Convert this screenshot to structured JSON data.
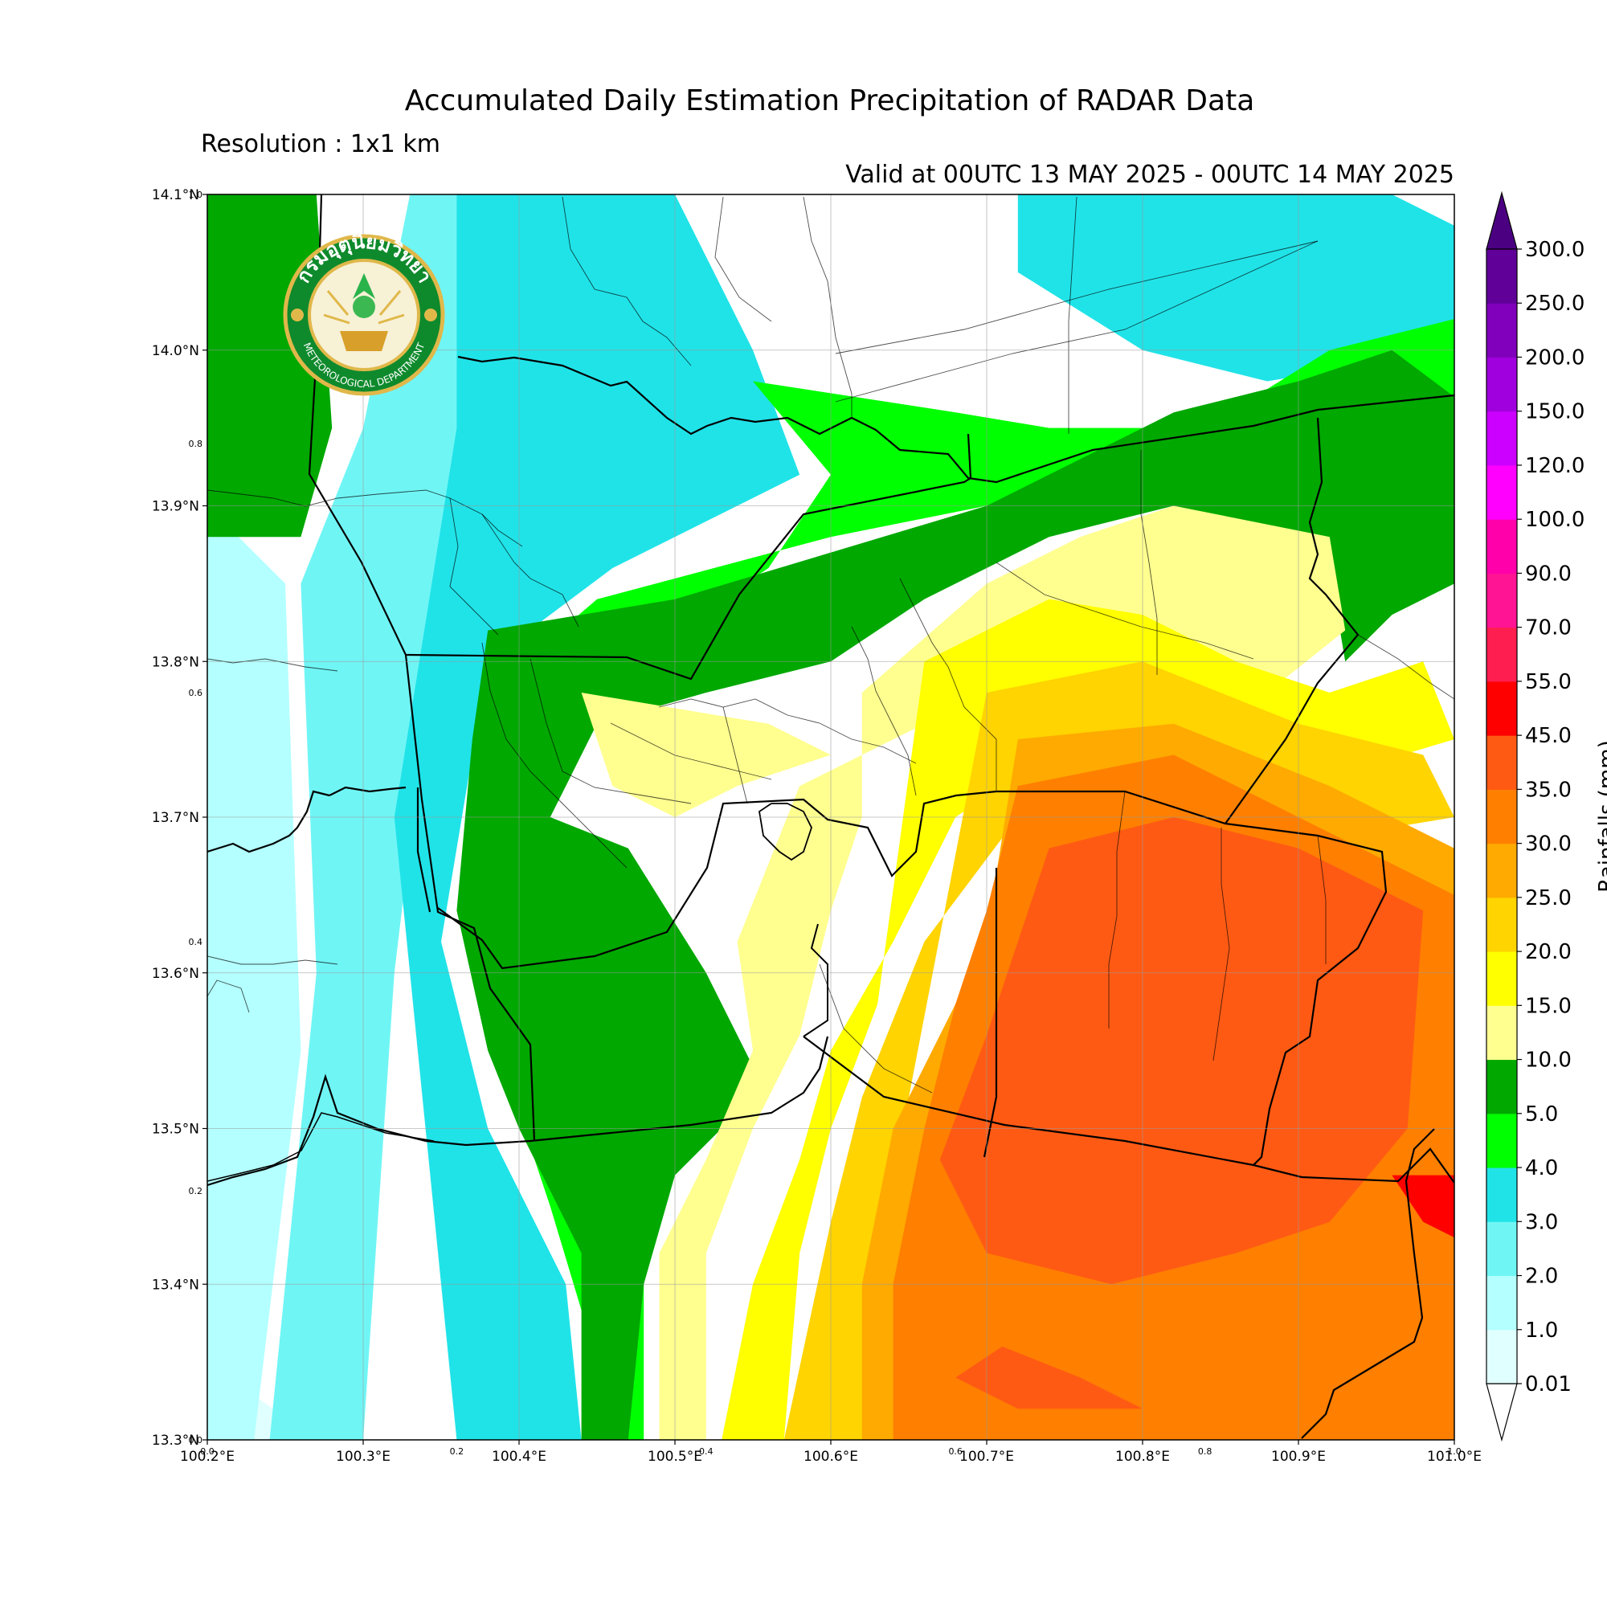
{
  "header": {
    "title": "Accumulated Daily Estimation Precipitation of RADAR Data",
    "resolution": "Resolution : 1x1 km",
    "valid": "Valid at 00UTC 13 MAY 2025 - 00UTC 14 MAY 2025"
  },
  "logo": {
    "thai_text": "กรมอุตุนิยมวิทยา",
    "english_text": "METEOROLOGICAL DEPARTMENT",
    "icon": "meteorological-department-seal-icon"
  },
  "map": {
    "lon_range": [
      100.2,
      101.0
    ],
    "lat_range": [
      13.3,
      14.1
    ],
    "lon_ticks": [
      {
        "value": 100.2,
        "label": "100.2°E"
      },
      {
        "value": 100.3,
        "label": "100.3°E"
      },
      {
        "value": 100.4,
        "label": "100.4°E"
      },
      {
        "value": 100.5,
        "label": "100.5°E"
      },
      {
        "value": 100.6,
        "label": "100.6°E"
      },
      {
        "value": 100.7,
        "label": "100.7°E"
      },
      {
        "value": 100.8,
        "label": "100.8°E"
      },
      {
        "value": 100.9,
        "label": "100.9°E"
      },
      {
        "value": 101.0,
        "label": "101.0°E"
      }
    ],
    "lat_ticks": [
      {
        "value": 14.1,
        "label": "14.1°N"
      },
      {
        "value": 14.0,
        "label": "14.0°N"
      },
      {
        "value": 13.9,
        "label": "13.9°N"
      },
      {
        "value": 13.8,
        "label": "13.8°N"
      },
      {
        "value": 13.7,
        "label": "13.7°N"
      },
      {
        "value": 13.6,
        "label": "13.6°N"
      },
      {
        "value": 13.5,
        "label": "13.5°N"
      },
      {
        "value": 13.4,
        "label": "13.4°N"
      },
      {
        "value": 13.3,
        "label": "13.3°N"
      }
    ],
    "frac_ticks_bottom": [
      "0.0",
      "0.2",
      "0.4",
      "0.6",
      "0.8",
      "1.0"
    ],
    "frac_ticks_left": [
      "1.0",
      "0.8",
      "0.6",
      "0.4",
      "0.2",
      "0.0"
    ],
    "gridlines": true
  },
  "colorbar": {
    "title": "Rainfalls (mm)",
    "levels": [
      "0.01",
      "1.0",
      "2.0",
      "3.0",
      "4.0",
      "5.0",
      "10.0",
      "15.0",
      "20.0",
      "25.0",
      "30.0",
      "35.0",
      "45.0",
      "55.0",
      "70.0",
      "90.0",
      "100.0",
      "120.0",
      "150.0",
      "200.0",
      "250.0",
      "300.0"
    ],
    "colors": [
      "#e0ffff",
      "#b4ffff",
      "#70f5f5",
      "#20e3e8",
      "#00ff00",
      "#00a800",
      "#ffff90",
      "#ffff00",
      "#ffd400",
      "#ffaa00",
      "#ff7f00",
      "#ff5a14",
      "#ff0000",
      "#ff1e50",
      "#ff1493",
      "#ff00aa",
      "#ff00ff",
      "#cc00ff",
      "#a000dd",
      "#8000bb",
      "#600099"
    ],
    "extend_low_color": "#ffffff",
    "extend_high_color": "#4b0082"
  },
  "chart_data": {
    "type": "heatmap",
    "title": "Accumulated Daily Estimation Precipitation of RADAR Data",
    "xlabel": "",
    "ylabel": "",
    "xlim": [
      100.2,
      101.0
    ],
    "ylim": [
      13.3,
      14.1
    ],
    "colorbar_label": "Rainfalls (mm)",
    "contour_levels": [
      0.01,
      1.0,
      2.0,
      3.0,
      4.0,
      5.0,
      10.0,
      15.0,
      20.0,
      25.0,
      30.0,
      35.0,
      45.0,
      55.0,
      70.0,
      90.0,
      100.0,
      120.0,
      150.0,
      200.0,
      250.0,
      300.0
    ],
    "precip_regions": [
      {
        "level": "0.01-1.0",
        "polygon_lonlat": [
          [
            100.2,
            13.35
          ],
          [
            100.27,
            13.3
          ],
          [
            100.2,
            13.3
          ]
        ]
      },
      {
        "level": "1.0-2.0",
        "polygon_lonlat": [
          [
            100.2,
            13.9
          ],
          [
            100.25,
            13.85
          ],
          [
            100.26,
            13.55
          ],
          [
            100.23,
            13.3
          ],
          [
            100.2,
            13.3
          ]
        ]
      },
      {
        "level": "2.0-3.0",
        "polygon_lonlat": [
          [
            100.33,
            14.1
          ],
          [
            100.46,
            14.1
          ],
          [
            100.42,
            13.95
          ],
          [
            100.35,
            13.85
          ],
          [
            100.32,
            13.6
          ],
          [
            100.3,
            13.3
          ],
          [
            100.24,
            13.3
          ],
          [
            100.27,
            13.6
          ],
          [
            100.26,
            13.85
          ],
          [
            100.3,
            13.95
          ]
        ]
      },
      {
        "level": "3.0-4.0",
        "polygon_lonlat": [
          [
            100.36,
            14.1
          ],
          [
            100.5,
            14.1
          ],
          [
            100.55,
            14.0
          ],
          [
            100.58,
            13.92
          ],
          [
            100.46,
            13.86
          ],
          [
            100.38,
            13.8
          ],
          [
            100.35,
            13.62
          ],
          [
            100.38,
            13.5
          ],
          [
            100.43,
            13.4
          ],
          [
            100.44,
            13.3
          ],
          [
            100.36,
            13.3
          ],
          [
            100.34,
            13.5
          ],
          [
            100.32,
            13.7
          ],
          [
            100.36,
            13.95
          ]
        ]
      },
      {
        "level": "3.0-4.0",
        "polygon_lonlat": [
          [
            100.72,
            14.1
          ],
          [
            100.96,
            14.1
          ],
          [
            101.0,
            14.08
          ],
          [
            101.0,
            14.0
          ],
          [
            100.88,
            13.98
          ],
          [
            100.8,
            14.0
          ],
          [
            100.72,
            14.05
          ]
        ]
      },
      {
        "level": "4.0-5.0",
        "polygon_lonlat": [
          [
            100.55,
            13.98
          ],
          [
            100.68,
            13.96
          ],
          [
            100.74,
            13.95
          ],
          [
            100.84,
            13.95
          ],
          [
            100.92,
            14.0
          ],
          [
            101.0,
            14.02
          ],
          [
            101.0,
            13.95
          ],
          [
            100.9,
            13.95
          ],
          [
            100.82,
            13.93
          ],
          [
            100.7,
            13.9
          ],
          [
            100.6,
            13.88
          ],
          [
            100.45,
            13.84
          ],
          [
            100.38,
            13.78
          ],
          [
            100.37,
            13.6
          ],
          [
            100.42,
            13.45
          ],
          [
            100.45,
            13.35
          ],
          [
            100.45,
            13.3
          ],
          [
            100.48,
            13.3
          ],
          [
            100.48,
            13.42
          ],
          [
            100.44,
            13.55
          ],
          [
            100.41,
            13.72
          ],
          [
            100.47,
            13.8
          ],
          [
            100.56,
            13.86
          ],
          [
            100.6,
            13.92
          ]
        ]
      },
      {
        "level": "5.0-10.0",
        "polygon_lonlat": [
          [
            100.2,
            14.1
          ],
          [
            100.27,
            14.1
          ],
          [
            100.28,
            13.95
          ],
          [
            100.26,
            13.88
          ],
          [
            100.2,
            13.88
          ]
        ]
      },
      {
        "level": "5.0-10.0",
        "polygon_lonlat": [
          [
            100.38,
            13.82
          ],
          [
            100.5,
            13.84
          ],
          [
            100.6,
            13.87
          ],
          [
            100.7,
            13.9
          ],
          [
            100.76,
            13.93
          ],
          [
            100.82,
            13.96
          ],
          [
            100.9,
            13.98
          ],
          [
            100.96,
            14.0
          ],
          [
            101.0,
            13.97
          ],
          [
            101.0,
            13.85
          ],
          [
            100.96,
            13.83
          ],
          [
            100.93,
            13.8
          ],
          [
            100.92,
            13.86
          ],
          [
            100.82,
            13.9
          ],
          [
            100.74,
            13.88
          ],
          [
            100.66,
            13.84
          ],
          [
            100.6,
            13.8
          ],
          [
            100.52,
            13.78
          ],
          [
            100.45,
            13.76
          ],
          [
            100.42,
            13.7
          ],
          [
            100.47,
            13.68
          ],
          [
            100.52,
            13.6
          ],
          [
            100.55,
            13.54
          ],
          [
            100.53,
            13.5
          ],
          [
            100.5,
            13.47
          ],
          [
            100.48,
            13.4
          ],
          [
            100.47,
            13.3
          ],
          [
            100.44,
            13.3
          ],
          [
            100.44,
            13.42
          ],
          [
            100.4,
            13.5
          ],
          [
            100.38,
            13.55
          ],
          [
            100.36,
            13.64
          ],
          [
            100.37,
            13.75
          ]
        ]
      },
      {
        "level": "10.0-15.0",
        "polygon_lonlat": [
          [
            100.62,
            13.78
          ],
          [
            100.7,
            13.85
          ],
          [
            100.76,
            13.88
          ],
          [
            100.82,
            13.9
          ],
          [
            100.92,
            13.88
          ],
          [
            100.93,
            13.82
          ],
          [
            100.88,
            13.78
          ],
          [
            100.82,
            13.8
          ],
          [
            100.78,
            13.82
          ],
          [
            100.72,
            13.8
          ],
          [
            100.66,
            13.76
          ],
          [
            100.58,
            13.72
          ],
          [
            100.54,
            13.62
          ],
          [
            100.55,
            13.55
          ],
          [
            100.52,
            13.48
          ],
          [
            100.49,
            13.42
          ],
          [
            100.49,
            13.3
          ],
          [
            100.52,
            13.3
          ],
          [
            100.52,
            13.42
          ],
          [
            100.55,
            13.5
          ],
          [
            100.58,
            13.56
          ],
          [
            100.6,
            13.64
          ],
          [
            100.62,
            13.7
          ]
        ]
      },
      {
        "level": "10.0-15.0",
        "polygon_lonlat": [
          [
            100.44,
            13.78
          ],
          [
            100.5,
            13.77
          ],
          [
            100.56,
            13.76
          ],
          [
            100.6,
            13.74
          ],
          [
            100.54,
            13.72
          ],
          [
            100.5,
            13.7
          ],
          [
            100.46,
            13.72
          ]
        ]
      },
      {
        "level": "15.0-20.0",
        "polygon_lonlat": [
          [
            100.66,
            13.8
          ],
          [
            100.74,
            13.84
          ],
          [
            100.8,
            13.83
          ],
          [
            100.86,
            13.8
          ],
          [
            100.92,
            13.78
          ],
          [
            100.98,
            13.8
          ],
          [
            101.0,
            13.75
          ],
          [
            100.9,
            13.72
          ],
          [
            100.82,
            13.72
          ],
          [
            100.74,
            13.74
          ],
          [
            100.68,
            13.7
          ],
          [
            100.64,
            13.62
          ],
          [
            100.6,
            13.55
          ],
          [
            100.58,
            13.48
          ],
          [
            100.55,
            13.4
          ],
          [
            100.53,
            13.3
          ],
          [
            100.57,
            13.3
          ],
          [
            100.58,
            13.42
          ],
          [
            100.6,
            13.5
          ],
          [
            100.63,
            13.58
          ]
        ]
      },
      {
        "level": "20.0-25.0",
        "polygon_lonlat": [
          [
            100.7,
            13.78
          ],
          [
            100.8,
            13.8
          ],
          [
            100.9,
            13.76
          ],
          [
            100.98,
            13.74
          ],
          [
            101.0,
            13.7
          ],
          [
            100.88,
            13.68
          ],
          [
            100.8,
            13.7
          ],
          [
            100.72,
            13.7
          ],
          [
            100.66,
            13.62
          ],
          [
            100.62,
            13.52
          ],
          [
            100.6,
            13.44
          ],
          [
            100.57,
            13.3
          ],
          [
            100.62,
            13.3
          ],
          [
            100.63,
            13.44
          ],
          [
            100.65,
            13.52
          ]
        ]
      },
      {
        "level": "25.0-30.0",
        "polygon_lonlat": [
          [
            100.72,
            13.75
          ],
          [
            100.82,
            13.76
          ],
          [
            100.92,
            13.72
          ],
          [
            101.0,
            13.68
          ],
          [
            101.0,
            13.6
          ],
          [
            100.9,
            13.62
          ],
          [
            100.8,
            13.66
          ],
          [
            100.72,
            13.66
          ],
          [
            100.68,
            13.58
          ],
          [
            100.64,
            13.5
          ],
          [
            100.62,
            13.4
          ],
          [
            100.62,
            13.3
          ],
          [
            100.66,
            13.3
          ],
          [
            100.67,
            13.4
          ],
          [
            100.68,
            13.5
          ]
        ]
      },
      {
        "level": "30.0-35.0",
        "polygon_lonlat": [
          [
            100.72,
            13.72
          ],
          [
            100.82,
            13.74
          ],
          [
            100.9,
            13.7
          ],
          [
            101.0,
            13.65
          ],
          [
            101.0,
            13.3
          ],
          [
            100.64,
            13.3
          ],
          [
            100.64,
            13.4
          ],
          [
            100.66,
            13.5
          ],
          [
            100.68,
            13.58
          ],
          [
            100.7,
            13.64
          ]
        ]
      },
      {
        "level": "35.0-45.0",
        "polygon_lonlat": [
          [
            100.74,
            13.68
          ],
          [
            100.82,
            13.7
          ],
          [
            100.9,
            13.68
          ],
          [
            100.98,
            13.64
          ],
          [
            100.97,
            13.5
          ],
          [
            100.92,
            13.44
          ],
          [
            100.86,
            13.42
          ],
          [
            100.78,
            13.4
          ],
          [
            100.7,
            13.42
          ],
          [
            100.67,
            13.48
          ],
          [
            100.7,
            13.56
          ],
          [
            100.72,
            13.62
          ]
        ]
      },
      {
        "level": "35.0-45.0",
        "polygon_lonlat": [
          [
            100.71,
            13.36
          ],
          [
            100.76,
            13.34
          ],
          [
            100.8,
            13.32
          ],
          [
            100.72,
            13.32
          ],
          [
            100.68,
            13.34
          ]
        ]
      },
      {
        "level": "45.0-55.0",
        "polygon_lonlat": [
          [
            100.96,
            13.47
          ],
          [
            100.98,
            13.44
          ],
          [
            101.0,
            13.43
          ],
          [
            101.0,
            13.47
          ]
        ]
      }
    ]
  }
}
